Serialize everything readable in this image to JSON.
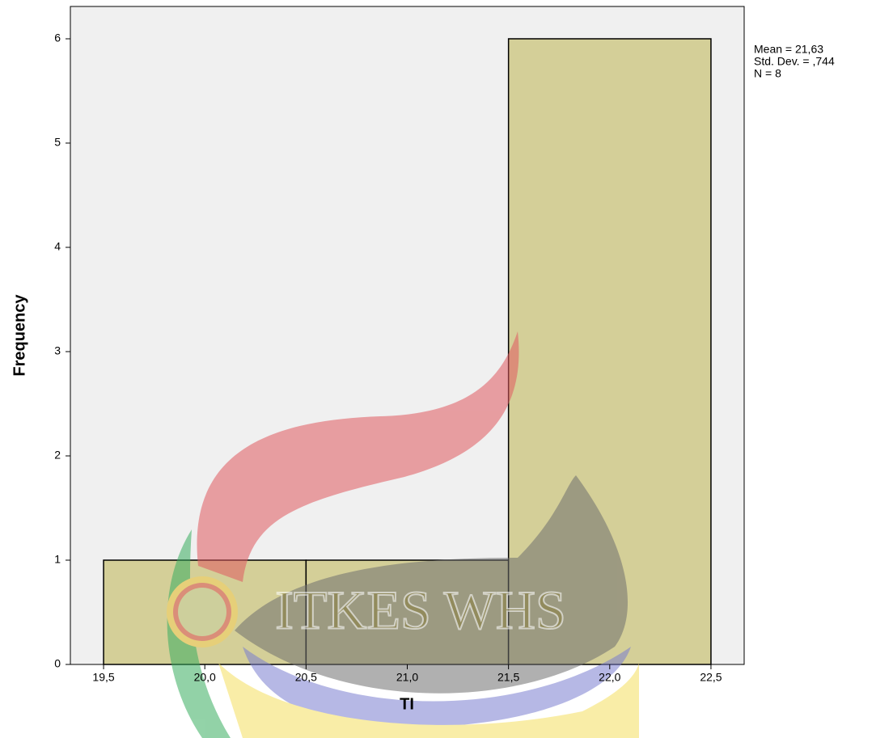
{
  "chart_data": {
    "type": "histogram",
    "x_label": "TI",
    "y_label": "Frequency",
    "bins": [
      19.5,
      20.5,
      21.5,
      22.5
    ],
    "counts": [
      1,
      1,
      6
    ],
    "color": "#d4cf98",
    "xlim": [
      19.336,
      22.664
    ],
    "ylim": [
      0,
      6.31
    ],
    "xticks": [
      {
        "value": 19.5,
        "label": "19,5"
      },
      {
        "value": 20.0,
        "label": "20,0"
      },
      {
        "value": 20.5,
        "label": "20,5"
      },
      {
        "value": 21.0,
        "label": "21,0"
      },
      {
        "value": 21.5,
        "label": "21,5"
      },
      {
        "value": 22.0,
        "label": "22,0"
      },
      {
        "value": 22.5,
        "label": "22,5"
      }
    ],
    "yticks": [
      0,
      1,
      2,
      3,
      4,
      5,
      6
    ],
    "annotations": [
      "Mean = 21,63",
      "Std. Dev. = ,744",
      "N = 8"
    ],
    "watermark": "ITKES WHS"
  }
}
